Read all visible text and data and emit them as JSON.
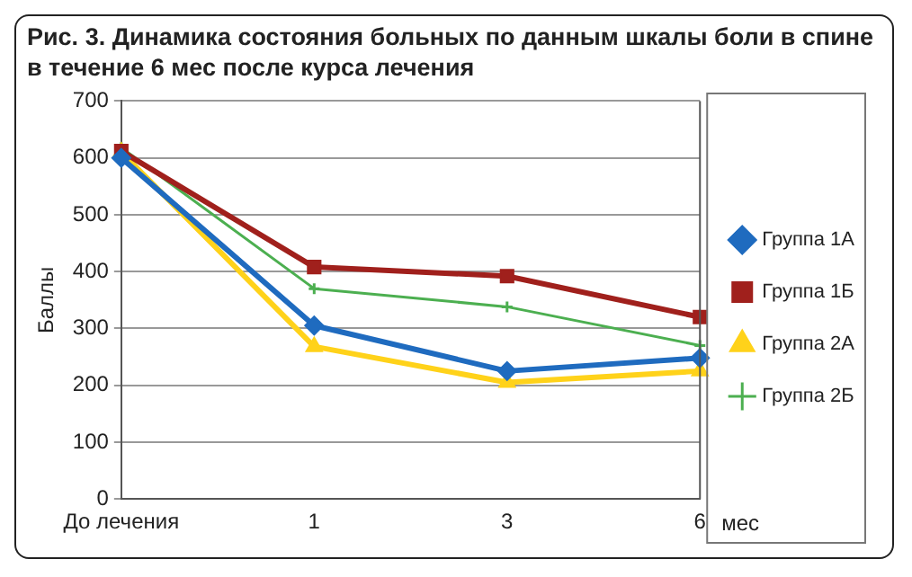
{
  "chart_data": {
    "type": "line",
    "title": "Рис. 3. Динамика состояния больных по данным шкалы боли в спине в течение 6 мес после курса лечения",
    "xlabel": "мес",
    "ylabel": "Баллы",
    "categories": [
      "До лечения",
      "1",
      "3",
      "6"
    ],
    "ylim": [
      0,
      700
    ],
    "yticks": [
      0,
      100,
      200,
      300,
      400,
      500,
      600,
      700
    ],
    "grid": "y",
    "legend": "right",
    "series": [
      {
        "name": "Группа 1А",
        "color": "#1f6bbf",
        "marker": "diamond",
        "values": [
          600,
          305,
          225,
          248
        ]
      },
      {
        "name": "Группа 1Б",
        "color": "#a0201c",
        "marker": "square",
        "values": [
          612,
          408,
          392,
          320
        ]
      },
      {
        "name": "Группа 2А",
        "color": "#ffd21a",
        "marker": "triangle",
        "values": [
          610,
          268,
          205,
          225
        ]
      },
      {
        "name": "Группа 2Б",
        "color": "#4caf50",
        "marker": "cross",
        "values": [
          618,
          370,
          338,
          270
        ]
      }
    ]
  }
}
